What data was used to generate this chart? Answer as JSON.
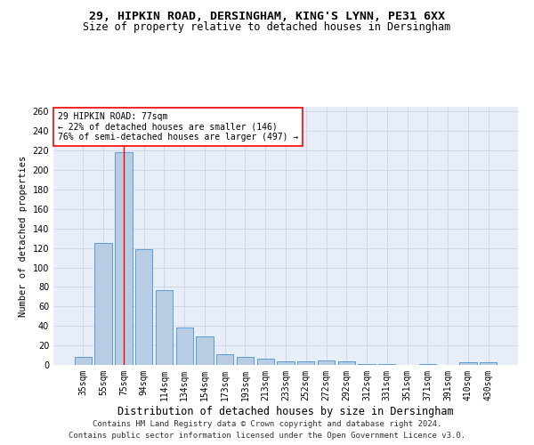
{
  "title1": "29, HIPKIN ROAD, DERSINGHAM, KING'S LYNN, PE31 6XX",
  "title2": "Size of property relative to detached houses in Dersingham",
  "xlabel": "Distribution of detached houses by size in Dersingham",
  "ylabel": "Number of detached properties",
  "categories": [
    "35sqm",
    "55sqm",
    "75sqm",
    "94sqm",
    "114sqm",
    "134sqm",
    "154sqm",
    "173sqm",
    "193sqm",
    "213sqm",
    "233sqm",
    "252sqm",
    "272sqm",
    "292sqm",
    "312sqm",
    "331sqm",
    "351sqm",
    "371sqm",
    "391sqm",
    "410sqm",
    "430sqm"
  ],
  "values": [
    8,
    125,
    218,
    119,
    77,
    38,
    29,
    11,
    8,
    6,
    4,
    4,
    5,
    4,
    1,
    1,
    0,
    1,
    0,
    3,
    3
  ],
  "bar_color": "#b8cce4",
  "bar_edge_color": "#5b9bd5",
  "annotation_text": "29 HIPKIN ROAD: 77sqm\n← 22% of detached houses are smaller (146)\n76% of semi-detached houses are larger (497) →",
  "annotation_box_color": "white",
  "annotation_box_edge": "red",
  "vline_color": "red",
  "vline_x": 2,
  "grid_color": "#d0d8e8",
  "plot_bg_color": "#e8eef7",
  "background_color": "white",
  "footer1": "Contains HM Land Registry data © Crown copyright and database right 2024.",
  "footer2": "Contains public sector information licensed under the Open Government Licence v3.0.",
  "ylim": [
    0,
    265
  ],
  "yticks": [
    0,
    20,
    40,
    60,
    80,
    100,
    120,
    140,
    160,
    180,
    200,
    220,
    240,
    260
  ],
  "title1_fontsize": 9.5,
  "title2_fontsize": 8.5,
  "ylabel_fontsize": 7.5,
  "xlabel_fontsize": 8.5,
  "tick_fontsize": 7,
  "annot_fontsize": 7,
  "footer_fontsize": 6.5
}
